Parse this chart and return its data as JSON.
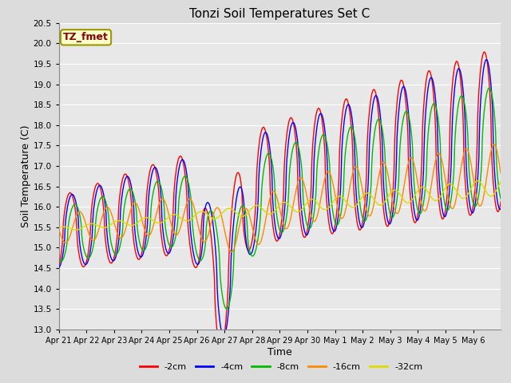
{
  "title": "Tonzi Soil Temperatures Set C",
  "xlabel": "Time",
  "ylabel": "Soil Temperature (C)",
  "ylim": [
    13.0,
    20.5
  ],
  "yticks": [
    13.0,
    13.5,
    14.0,
    14.5,
    15.0,
    15.5,
    16.0,
    16.5,
    17.0,
    17.5,
    18.0,
    18.5,
    19.0,
    19.5,
    20.0,
    20.5
  ],
  "xtick_labels": [
    "Apr 21",
    "Apr 22",
    "Apr 23",
    "Apr 24",
    "Apr 25",
    "Apr 26",
    "Apr 27",
    "Apr 28",
    "Apr 29",
    "Apr 30",
    "May 1",
    "May 2",
    "May 3",
    "May 4",
    "May 5",
    "May 6"
  ],
  "colors": {
    "-2cm": "#FF0000",
    "-4cm": "#0000FF",
    "-8cm": "#00BB00",
    "-16cm": "#FF8800",
    "-32cm": "#DDDD00"
  },
  "legend_label": "TZ_fmet",
  "background_color": "#DCDCDC",
  "plot_background": "#E8E8E8",
  "grid_color": "#FFFFFF"
}
